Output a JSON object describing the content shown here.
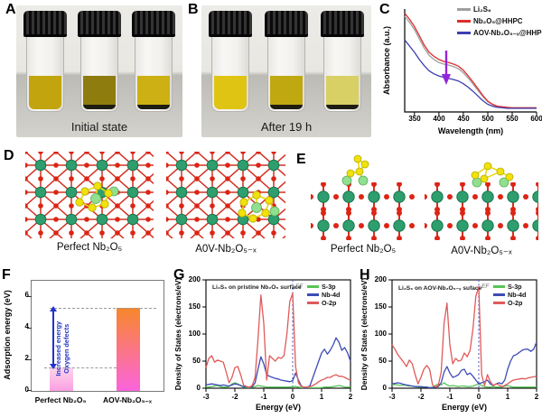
{
  "figure": {
    "panels": {
      "A": {
        "label": "A",
        "caption": "Initial state",
        "vials": [
          {
            "liquid": "#c2a50e",
            "sediment": false
          },
          {
            "liquid": "#8f7c0e",
            "sediment": true
          },
          {
            "liquid": "#cdb013",
            "sediment": true
          }
        ]
      },
      "B": {
        "label": "B",
        "caption": "After 19 h",
        "vials": [
          {
            "liquid": "#e0c414",
            "sediment": false
          },
          {
            "liquid": "#c0a811",
            "sediment": true
          },
          {
            "liquid": "#d8d065",
            "sediment": true
          }
        ]
      },
      "C": {
        "label": "C"
      },
      "D": {
        "label": "D",
        "left_caption": "Perfect Nb₂O₅",
        "right_caption": "A0V-Nb₂O₅₋ₓ"
      },
      "E": {
        "label": "E",
        "left_caption": "Perfect Nb₂O₅",
        "right_caption": "A0V-Nb₂O₅₋ₓ"
      },
      "F": {
        "label": "F"
      },
      "G": {
        "label": "G"
      },
      "H": {
        "label": "H"
      }
    }
  },
  "colors": {
    "accent_arrow_c": "#9326d9",
    "annotation_blue": "#2233cc",
    "dashed_gray": "#9a9a9a",
    "fermi_line": "#5560c0",
    "atoms": {
      "nb": "#2f9e6e",
      "o": "#dd2414",
      "s": "#f0e20a",
      "li": "#90e08f"
    }
  },
  "chart_data": [
    {
      "id": "C",
      "type": "line",
      "xlabel": "Wavelength (nm)",
      "ylabel": "Absorbance (a.u.)",
      "xlim": [
        330,
        600
      ],
      "ylim": [
        0,
        1
      ],
      "xticks": [
        350,
        400,
        450,
        500,
        550,
        600
      ],
      "x_start": 330,
      "x_step": 10,
      "legend_position": "top-right",
      "annotation": {
        "type": "down-arrow",
        "x_nm": 415
      },
      "series": [
        {
          "name": "Li₂S₆",
          "color": "#9f9f9f",
          "values": [
            0.93,
            0.87,
            0.8,
            0.71,
            0.62,
            0.55,
            0.51,
            0.48,
            0.465,
            0.455,
            0.44,
            0.42,
            0.38,
            0.33,
            0.27,
            0.21,
            0.15,
            0.1,
            0.07,
            0.05,
            0.045,
            0.04,
            0.04,
            0.04,
            0.04,
            0.04,
            0.04,
            0.04
          ]
        },
        {
          "name": "Nb₂O₅@HHPC",
          "color": "#e02b2b",
          "values": [
            0.96,
            0.9,
            0.83,
            0.74,
            0.65,
            0.58,
            0.54,
            0.51,
            0.49,
            0.48,
            0.465,
            0.445,
            0.405,
            0.35,
            0.29,
            0.225,
            0.16,
            0.105,
            0.075,
            0.055,
            0.05,
            0.045,
            0.04,
            0.04,
            0.04,
            0.04,
            0.04,
            0.04
          ]
        },
        {
          "name": "AOV-Nb₂O₅₋ₓ@HHPC",
          "color": "#3c3fb0",
          "values": [
            0.7,
            0.64,
            0.58,
            0.51,
            0.45,
            0.4,
            0.37,
            0.35,
            0.335,
            0.325,
            0.315,
            0.3,
            0.275,
            0.24,
            0.2,
            0.155,
            0.11,
            0.075,
            0.055,
            0.045,
            0.04,
            0.035,
            0.035,
            0.035,
            0.035,
            0.035,
            0.035,
            0.035
          ]
        }
      ]
    },
    {
      "id": "F",
      "type": "bar",
      "ylabel": "Adsorption energy (eV)",
      "categories": [
        "Perfect Nb₂O₅",
        "AOV-Nb₂O₅₋ₓ"
      ],
      "values": [
        1.5,
        5.3
      ],
      "ylim": [
        0,
        7
      ],
      "yticks": [
        0,
        2,
        4,
        6
      ],
      "annotations": [
        "Increased energy",
        "Oxygen defects"
      ],
      "bar_colors": [
        [
          "#fdd6e9",
          "#fb9fe3"
        ],
        [
          "#f8872b",
          "#fb64dd"
        ]
      ]
    },
    {
      "id": "G",
      "type": "line",
      "title": "Li₂S₆ on pristine Nb₂O₅ surface",
      "xlabel": "Energy (eV)",
      "ylabel": "Density of States (electrons/eV)",
      "xlim": [
        -3,
        2
      ],
      "ylim": [
        0,
        200
      ],
      "xticks": [
        -3,
        -2,
        -1,
        0,
        1,
        2
      ],
      "yticks": [
        0,
        50,
        100,
        150,
        200
      ],
      "fermi_label": "EF",
      "fermi_x": 0,
      "x_start": -3,
      "x_step": 0.1,
      "legend_position": "top-right",
      "series": [
        {
          "name": "S-3p",
          "color": "#58c558",
          "values": [
            2,
            2,
            3,
            4,
            5,
            3,
            2,
            2,
            3,
            8,
            10,
            8,
            5,
            2,
            1,
            1,
            2,
            3,
            5,
            4,
            3,
            2,
            2,
            2,
            2,
            2,
            2,
            2,
            2,
            2,
            3,
            3,
            2,
            1,
            1,
            1,
            1,
            1,
            1,
            1,
            1,
            2,
            2,
            2,
            3,
            4,
            5,
            4,
            2,
            2,
            2
          ]
        },
        {
          "name": "Nb-4d",
          "color": "#3c4bb5",
          "values": [
            6,
            7,
            8,
            7,
            6,
            5,
            6,
            5,
            4,
            6,
            8,
            7,
            5,
            3,
            2,
            2,
            3,
            10,
            35,
            58,
            45,
            25,
            22,
            20,
            18,
            17,
            15,
            14,
            13,
            12,
            14,
            28,
            15,
            4,
            1,
            1,
            5,
            20,
            35,
            50,
            65,
            72,
            63,
            70,
            80,
            93,
            85,
            70,
            75,
            65,
            50
          ]
        },
        {
          "name": "O-2p",
          "color": "#e05a5a",
          "values": [
            38,
            55,
            60,
            48,
            52,
            50,
            48,
            30,
            10,
            20,
            38,
            40,
            25,
            6,
            3,
            2,
            5,
            20,
            90,
            172,
            120,
            15,
            60,
            55,
            50,
            57,
            55,
            60,
            100,
            160,
            175,
            40,
            10,
            3,
            2,
            2,
            3,
            5,
            8,
            12,
            15,
            17,
            20,
            20,
            23,
            25,
            22,
            22,
            20,
            17,
            15
          ]
        }
      ]
    },
    {
      "id": "H",
      "type": "line",
      "title": "Li₂S₆ on AOV-Nb₂O₅₋ₓ suface",
      "xlabel": "Energy (eV)",
      "ylabel": "Density of States (electrons/eV)",
      "xlim": [
        -3,
        2
      ],
      "ylim": [
        0,
        200
      ],
      "xticks": [
        -3,
        -2,
        -1,
        0,
        1,
        2
      ],
      "yticks": [
        0,
        50,
        100,
        150,
        200
      ],
      "fermi_label": "EF",
      "fermi_x": 0,
      "x_start": -3,
      "x_step": 0.1,
      "legend_position": "top-right",
      "series": [
        {
          "name": "S-3p",
          "color": "#58c558",
          "values": [
            6,
            7,
            6,
            5,
            6,
            5,
            4,
            4,
            3,
            2,
            2,
            2,
            2,
            1,
            2,
            5,
            8,
            6,
            10,
            6,
            4,
            5,
            4,
            3,
            4,
            4,
            3,
            3,
            4,
            6,
            8,
            5,
            3,
            2,
            2,
            3,
            2,
            2,
            2,
            4,
            5,
            3,
            2,
            2,
            2,
            2,
            2,
            2,
            2,
            2,
            2
          ]
        },
        {
          "name": "Nb-4d",
          "color": "#3c4bb5",
          "values": [
            8,
            9,
            10,
            9,
            7,
            6,
            5,
            4,
            3,
            3,
            3,
            2,
            2,
            1,
            1,
            2,
            3,
            10,
            30,
            40,
            28,
            20,
            22,
            25,
            33,
            35,
            25,
            28,
            22,
            15,
            8,
            10,
            12,
            15,
            8,
            5,
            8,
            10,
            8,
            15,
            35,
            50,
            60,
            62,
            66,
            70,
            72,
            72,
            68,
            72,
            85
          ]
        },
        {
          "name": "O-2p",
          "color": "#e05a5a",
          "values": [
            80,
            72,
            62,
            55,
            48,
            40,
            52,
            45,
            25,
            8,
            20,
            35,
            42,
            35,
            6,
            2,
            5,
            30,
            120,
            157,
            80,
            45,
            55,
            50,
            52,
            65,
            58,
            70,
            110,
            170,
            187,
            25,
            5,
            25,
            12,
            5,
            8,
            6,
            3,
            5,
            8,
            12,
            15,
            16,
            17,
            18,
            17,
            19,
            20,
            21,
            22
          ]
        }
      ]
    }
  ]
}
